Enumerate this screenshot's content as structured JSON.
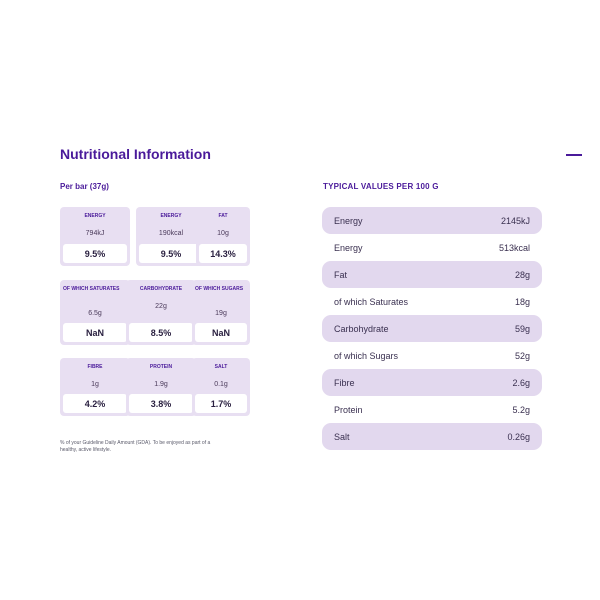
{
  "title": "Nutritional Information",
  "per_bar_label": "Per bar (37g)",
  "typical_label": "TYPICAL VALUES PER 100 G",
  "tiles": [
    {
      "name": "ENERGY",
      "amount": "794kJ",
      "percent": "9.5%"
    },
    {
      "name": "ENERGY",
      "amount": "190kcal",
      "percent": "9.5%"
    },
    {
      "name": "FAT",
      "amount": "10g",
      "percent": "14.3%"
    },
    {
      "name": "OF WHICH SATURATES",
      "amount": "6.5g",
      "percent": "NaN"
    },
    {
      "name": "CARBOHYDRATE",
      "amount": "22g",
      "percent": "8.5%"
    },
    {
      "name": "OF WHICH SUGARS",
      "amount": "19g",
      "percent": "NaN"
    },
    {
      "name": "FIBRE",
      "amount": "1g",
      "percent": "4.2%"
    },
    {
      "name": "PROTEIN",
      "amount": "1.9g",
      "percent": "3.8%"
    },
    {
      "name": "SALT",
      "amount": "0.1g",
      "percent": "1.7%"
    }
  ],
  "footnote": "% of your Guideline Daily Amount (GDA). To be enjoyed as part of a healthy, active lifestyle.",
  "table": [
    {
      "label": "Energy",
      "value": "2145kJ"
    },
    {
      "label": "Energy",
      "value": "513kcal"
    },
    {
      "label": "Fat",
      "value": "28g"
    },
    {
      "label": "of which Saturates",
      "value": "18g"
    },
    {
      "label": "Carbohydrate",
      "value": "59g"
    },
    {
      "label": "of which Sugars",
      "value": "52g"
    },
    {
      "label": "Fibre",
      "value": "2.6g"
    },
    {
      "label": "Protein",
      "value": "5.2g"
    },
    {
      "label": "Salt",
      "value": "0.26g"
    }
  ],
  "colors": {
    "accent": "#4a1a9a",
    "tile_bg": "#e8dff2",
    "row_bg": "#e2d8ee"
  }
}
